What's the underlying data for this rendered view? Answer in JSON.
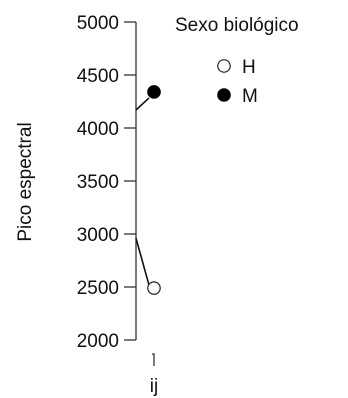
{
  "chart_data": {
    "type": "scatter",
    "title": "",
    "xlabel": "",
    "ylabel": "Pico espectral",
    "categories": [
      "ĳ"
    ],
    "ylim": [
      2000,
      5000
    ],
    "yticks": [
      2000,
      2500,
      3000,
      3500,
      4000,
      4500,
      5000
    ],
    "legend_title": "Sexo biológico",
    "legend_position": "top-right",
    "series": [
      {
        "name": "H",
        "marker": "open-circle",
        "color": "#222222",
        "fill": "#ffffff",
        "points": [
          {
            "category": "ĳ",
            "y": 2490
          }
        ],
        "connector_to": 2960
      },
      {
        "name": "M",
        "marker": "filled-circle",
        "color": "#000000",
        "fill": "#000000",
        "points": [
          {
            "category": "ĳ",
            "y": 4340
          }
        ],
        "connector_to": 4170
      }
    ]
  }
}
